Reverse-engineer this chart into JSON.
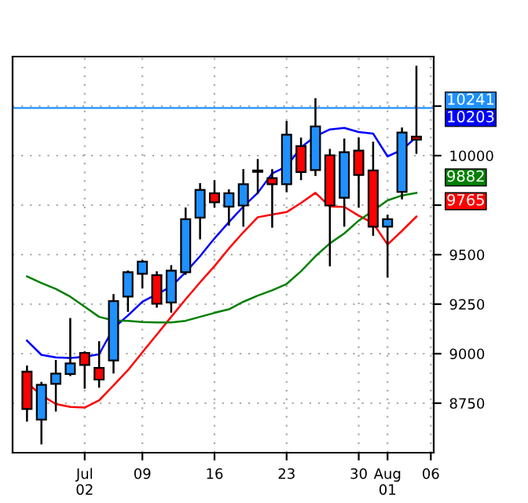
{
  "chart_data": {
    "type": "candlestick",
    "categories": [
      null,
      null,
      null,
      null,
      "Jul\n02",
      null,
      null,
      null,
      "09",
      null,
      null,
      null,
      null,
      "16",
      null,
      null,
      null,
      null,
      "23",
      null,
      null,
      null,
      null,
      "30",
      null,
      "Aug\n01",
      null,
      null,
      "06"
    ],
    "ohlc": [
      [
        8909,
        8935,
        8662,
        8721
      ],
      [
        8667,
        8853,
        8547,
        8843
      ],
      [
        8848,
        8963,
        8713,
        8899
      ],
      [
        8897,
        9175,
        8892,
        8951
      ],
      [
        9004,
        9007,
        8828,
        8943
      ],
      [
        8928,
        9058,
        8833,
        8869
      ],
      [
        8966,
        9296,
        8905,
        9265
      ],
      [
        9288,
        9415,
        9216,
        9411
      ],
      [
        9403,
        9468,
        9334,
        9465
      ],
      [
        9396,
        9411,
        9237,
        9252
      ],
      [
        9258,
        9442,
        9212,
        9419
      ],
      [
        9411,
        9733,
        9403,
        9679
      ],
      [
        9687,
        9856,
        9582,
        9827
      ],
      [
        9810,
        9871,
        9743,
        9764
      ],
      [
        9743,
        9825,
        9651,
        9810
      ],
      [
        9748,
        9927,
        9646,
        9856
      ],
      [
        9918,
        9978,
        9812,
        9925
      ],
      [
        9886,
        9927,
        9641,
        9856
      ],
      [
        9856,
        10170,
        9820,
        10106
      ],
      [
        10048,
        10086,
        9881,
        9917
      ],
      [
        9927,
        10285,
        9902,
        10147
      ],
      [
        10002,
        10029,
        9446,
        9748
      ],
      [
        9787,
        10081,
        9646,
        10017
      ],
      [
        10025,
        10086,
        9743,
        9902
      ],
      [
        9925,
        10065,
        9600,
        9641
      ],
      [
        9641,
        9697,
        9390,
        9679
      ],
      [
        9817,
        10137,
        9784,
        10117
      ],
      [
        10096,
        10449,
        10014,
        10081
      ],
      null
    ],
    "colors": [
      "#ff0000",
      "#1e90ff",
      "#1e90ff",
      "#1e90ff",
      "#ff0000",
      "#ff0000",
      "#1e90ff",
      "#1e90ff",
      "#1e90ff",
      "#ff0000",
      "#1e90ff",
      "#1e90ff",
      "#1e90ff",
      "#ff0000",
      "#1e90ff",
      "#1e90ff",
      "#1e90ff",
      "#ff0000",
      "#1e90ff",
      "#ff0000",
      "#1e90ff",
      "#ff0000",
      "#1e90ff",
      "#ff0000",
      "#ff0000",
      "#1e90ff",
      "#1e90ff",
      "#ff0000",
      null
    ],
    "series": [
      {
        "type": "line",
        "color": "#0000ff",
        "values": [
          9066,
          8994,
          8981,
          8978,
          8984,
          8997,
          9129,
          9193,
          9262,
          9300,
          9339,
          9411,
          9492,
          9582,
          9664,
          9743,
          9812,
          9910,
          9945,
          10042,
          10098,
          10132,
          10140,
          10119,
          10111,
          9996,
          10029,
          10094,
          null
        ]
      },
      {
        "type": "line",
        "color": "#ff0000",
        "values": [
          8853,
          8790,
          8746,
          8731,
          8728,
          8764,
          8840,
          8917,
          9007,
          9096,
          9186,
          9275,
          9360,
          9442,
          9531,
          9613,
          9689,
          9702,
          9715,
          9761,
          9812,
          9743,
          9741,
          9697,
          9659,
          9551,
          9620,
          9692,
          null
        ]
      },
      {
        "type": "line",
        "color": "#008000",
        "values": [
          9390,
          9357,
          9327,
          9288,
          9237,
          9186,
          9168,
          9166,
          9160,
          9158,
          9158,
          9166,
          9186,
          9206,
          9224,
          9262,
          9293,
          9320,
          9352,
          9416,
          9492,
          9557,
          9607,
          9672,
          9722,
          9774,
          9799,
          9812,
          null
        ]
      }
    ],
    "ylim": [
      8500,
      10500
    ],
    "yticks": [
      8750,
      9000,
      9250,
      9500,
      {
        "value": 9750,
        "label": null
      },
      10000,
      {
        "value": 10250,
        "label": null
      }
    ],
    "ref_lines": [
      {
        "axis": "y",
        "value": 10241,
        "label": "10241",
        "color": "#1e90ff"
      }
    ],
    "annotations": [
      "10203",
      "9765",
      "9882"
    ],
    "grid": true
  }
}
